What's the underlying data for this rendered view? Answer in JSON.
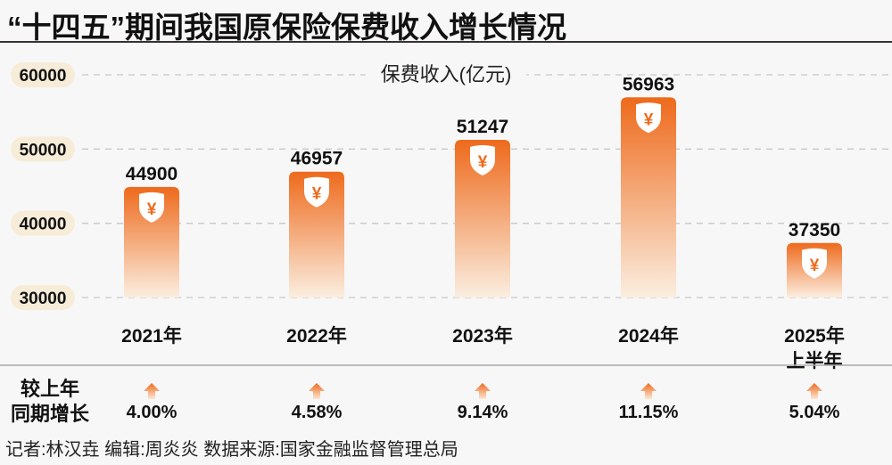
{
  "title": "“十四五”期间我国原保险保费收入增长情况",
  "chart_data": {
    "type": "bar",
    "series_label": "保费收入(亿元)",
    "categories": [
      "2021年",
      "2022年",
      "2023年",
      "2024年",
      "2025年\n上半年"
    ],
    "values": [
      44900,
      46957,
      51247,
      56963,
      37350
    ],
    "value_labels": [
      "44900",
      "46957",
      "51247",
      "56963",
      "37350"
    ],
    "yticks": [
      "30000",
      "40000",
      "50000",
      "60000"
    ],
    "ylim": [
      30000,
      60000
    ],
    "grid": true,
    "bar_color_top": "#ee6a1c",
    "bar_color_bottom": "#fbeee0",
    "bar_icon": "yuan-shield-icon",
    "growth_label": [
      "较上年",
      "同期增长"
    ],
    "growth": [
      "4.00%",
      "4.58%",
      "9.14%",
      "11.15%",
      "5.04%"
    ],
    "growth_icon": "up-arrow-icon"
  },
  "credit": "记者:林汉垚  编辑:周炎炎  数据来源:国家金融监督管理总局"
}
